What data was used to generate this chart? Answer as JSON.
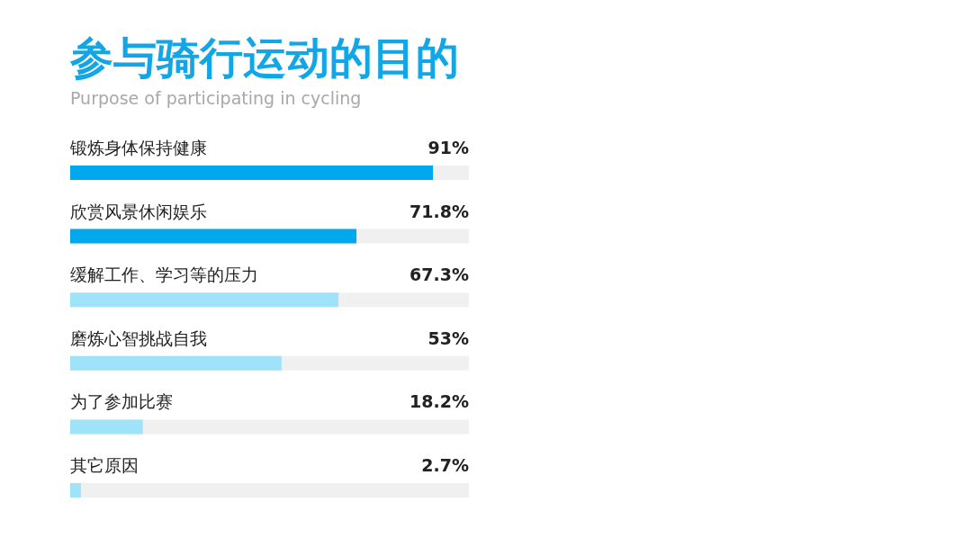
{
  "chart_data": {
    "type": "bar",
    "orientation": "horizontal",
    "title": "参与骑行运动的目的",
    "subtitle": "Purpose of participating in cycling",
    "categories": [
      "锻炼身体保持健康",
      "欣赏风景休闲娱乐",
      "缓解工作、学习等的压力",
      "磨炼心智挑战自我",
      "为了参加比赛",
      "其它原因"
    ],
    "values": [
      91,
      71.8,
      67.3,
      53,
      18.2,
      2.7
    ],
    "value_labels": [
      "91%",
      "71.8%",
      "67.3%",
      "53%",
      "18.2%",
      "2.7%"
    ],
    "colors": [
      "#00a9ee",
      "#00a9ee",
      "#9fe3fb",
      "#9fe3fb",
      "#9fe3fb",
      "#9fe3fb"
    ],
    "xlim": [
      0,
      100
    ]
  }
}
